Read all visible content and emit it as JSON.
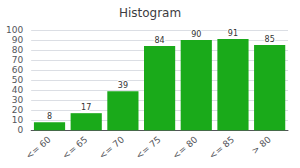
{
  "chart_data": {
    "type": "bar",
    "title": "Histogram",
    "categories": [
      "<= 60",
      "<= 65",
      "<= 70",
      "<= 75",
      "<= 80",
      "<= 85",
      "> 80"
    ],
    "values": [
      8,
      17,
      39,
      84,
      90,
      91,
      85
    ],
    "color": "#1aaa1a",
    "ylim": [
      0,
      100
    ],
    "yticks": [
      0,
      10,
      20,
      30,
      40,
      50,
      60,
      70,
      80,
      90,
      100
    ],
    "grid": true,
    "data_labels": true
  }
}
